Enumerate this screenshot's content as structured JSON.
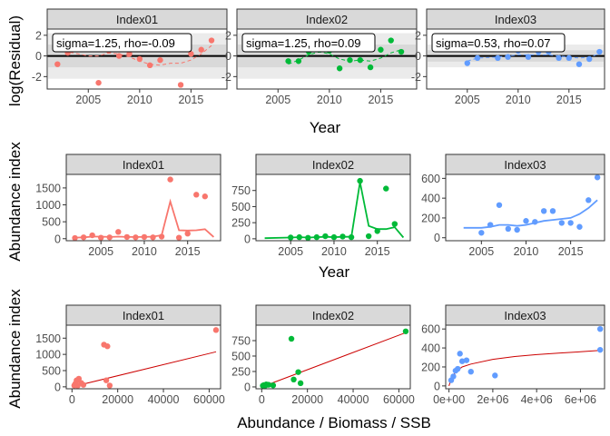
{
  "colors": {
    "index01": "#F8766D",
    "index02": "#00BA38",
    "index03": "#619CFF",
    "fit_line": "#CC0000",
    "strip": "#D9D9D9",
    "band_outer": "#EBEBEB",
    "band_inner": "#D9D9D9"
  },
  "chart_data": [
    {
      "id": "residuals",
      "type": "scatter",
      "ylabel": "log(Residual)",
      "xlabel": "Year",
      "xlim": [
        2001,
        2018.5
      ],
      "ylim": [
        -3.2,
        2.6
      ],
      "xticks": [
        "2005",
        "2010",
        "2015"
      ],
      "yticks": [
        "2",
        "0",
        "-2"
      ],
      "ytick_values": [
        2,
        0,
        -2
      ],
      "zero_line": true,
      "panels": [
        {
          "strip": "Index01",
          "annotation": "sigma=1.25, rho=-0.09",
          "band_outer": 2.2,
          "band_inner": 1.1,
          "x": [
            2002,
            2003,
            2004,
            2005,
            2006,
            2007,
            2008,
            2009,
            2010,
            2011,
            2012,
            2013,
            2014,
            2015,
            2016,
            2017
          ],
          "y": [
            -0.8,
            0.3,
            0.7,
            1.4,
            -2.6,
            0.5,
            0.0,
            0.2,
            -0.3,
            -0.9,
            -0.4,
            1.0,
            -2.8,
            0.2,
            0.6,
            1.5
          ],
          "smooth_y": [
            0.6,
            0.4,
            0.2,
            0.0,
            0.0,
            0.3,
            0.2,
            -0.1,
            -0.5,
            -0.8,
            -0.9,
            -0.7,
            -0.7,
            -0.4,
            0.2,
            1.0
          ]
        },
        {
          "strip": "Index02",
          "annotation": "sigma=1.25, rho=0.09",
          "band_outer": 2.2,
          "band_inner": 1.1,
          "x": [
            2006,
            2007,
            2008,
            2009,
            2010,
            2011,
            2012,
            2013,
            2014,
            2015,
            2016,
            2017
          ],
          "y": [
            -0.5,
            -0.5,
            0.4,
            0.6,
            0.5,
            -1.2,
            -0.4,
            -0.4,
            -1.1,
            0.6,
            1.5,
            0.4
          ],
          "smooth_y": [
            -0.8,
            -0.4,
            0.1,
            0.4,
            0.2,
            -0.3,
            -0.5,
            -0.4,
            -0.5,
            -0.2,
            0.3,
            0.6
          ]
        },
        {
          "strip": "Index03",
          "annotation": "sigma=0.53, rho=0.07",
          "band_outer": 1.1,
          "band_inner": 0.55,
          "x": [
            2005,
            2006,
            2008,
            2009,
            2010,
            2011,
            2012,
            2013,
            2014,
            2015,
            2016,
            2017,
            2018
          ],
          "y": [
            -0.7,
            -0.2,
            -0.2,
            -0.1,
            0.5,
            -0.1,
            0.4,
            0.4,
            -0.2,
            -0.2,
            -0.8,
            -0.3,
            0.4
          ],
          "smooth_y": [
            -0.5,
            -0.2,
            -0.1,
            0.0,
            0.1,
            0.1,
            0.1,
            0.1,
            0.0,
            -0.1,
            -0.2,
            -0.1,
            0.2
          ]
        }
      ]
    },
    {
      "id": "index_vs_year",
      "type": "line",
      "ylabel": "Abundance index",
      "xlabel": "Year",
      "xlim": [
        2001,
        2018.8
      ],
      "xticks": [
        "2005",
        "2010",
        "2015"
      ],
      "panels": [
        {
          "strip": "Index01",
          "ylim": [
            -60,
            1900
          ],
          "yticks": [
            "1500",
            "1000",
            "500",
            "0"
          ],
          "ytick_values": [
            1500,
            1000,
            500,
            0
          ],
          "x": [
            2002,
            2003,
            2004,
            2005,
            2006,
            2007,
            2008,
            2009,
            2010,
            2011,
            2012,
            2013,
            2014,
            2015,
            2016,
            2017
          ],
          "obs": [
            20,
            40,
            100,
            30,
            40,
            200,
            50,
            40,
            50,
            40,
            60,
            1750,
            30,
            150,
            1300,
            1250
          ],
          "pred_x": [
            2002,
            2003,
            2004,
            2005,
            2006,
            2007,
            2008,
            2009,
            2010,
            2011,
            2012,
            2013,
            2014,
            2015,
            2016,
            2017,
            2018
          ],
          "pred": [
            30,
            40,
            60,
            60,
            50,
            60,
            50,
            50,
            50,
            60,
            100,
            1100,
            250,
            240,
            250,
            280,
            50
          ]
        },
        {
          "strip": "Index02",
          "ylim": [
            -30,
            1000
          ],
          "yticks": [
            "750",
            "500",
            "250",
            "0"
          ],
          "ytick_values": [
            750,
            500,
            250,
            0
          ],
          "x": [
            2005,
            2006,
            2007,
            2008,
            2009,
            2010,
            2011,
            2012,
            2013,
            2014,
            2015,
            2016,
            2017
          ],
          "obs": [
            20,
            25,
            15,
            25,
            40,
            25,
            35,
            25,
            900,
            40,
            120,
            780,
            230
          ],
          "pred_x": [
            2002,
            2005,
            2006,
            2007,
            2008,
            2009,
            2010,
            2011,
            2012,
            2013,
            2014,
            2015,
            2016,
            2017,
            2018
          ],
          "pred": [
            10,
            20,
            25,
            20,
            25,
            30,
            25,
            30,
            30,
            880,
            200,
            150,
            150,
            180,
            20
          ]
        },
        {
          "strip": "Index03",
          "ylim": [
            -30,
            640
          ],
          "yticks": [
            "600",
            "400",
            "200",
            "0"
          ],
          "ytick_values": [
            600,
            400,
            200,
            0
          ],
          "x": [
            2005,
            2006,
            2007,
            2008,
            2009,
            2010,
            2011,
            2012,
            2013,
            2014,
            2015,
            2016,
            2017,
            2018
          ],
          "obs": [
            50,
            130,
            330,
            90,
            80,
            170,
            160,
            270,
            270,
            150,
            150,
            110,
            380,
            610
          ],
          "pred_x": [
            2003,
            2005,
            2006,
            2007,
            2008,
            2009,
            2010,
            2011,
            2012,
            2013,
            2014,
            2015,
            2016,
            2017,
            2018
          ],
          "pred": [
            100,
            100,
            110,
            130,
            130,
            120,
            130,
            150,
            170,
            180,
            190,
            200,
            240,
            300,
            380
          ]
        }
      ]
    },
    {
      "id": "index_vs_abundance",
      "type": "scatter",
      "ylabel": "Abundance index",
      "xlabel": "Abundance / Biomass / SSB",
      "panels": [
        {
          "strip": "Index01",
          "xlim": [
            -2500,
            65000
          ],
          "ylim": [
            -60,
            1900
          ],
          "xticks": [
            "0",
            "20000",
            "40000",
            "60000"
          ],
          "xtick_values": [
            0,
            20000,
            40000,
            60000
          ],
          "yticks": [
            "1500",
            "1000",
            "500",
            "0"
          ],
          "ytick_values": [
            1500,
            1000,
            500,
            0
          ],
          "x": [
            1000,
            1500,
            2000,
            2500,
            3000,
            4000,
            5000,
            14000,
            15000,
            15500,
            16500,
            63000
          ],
          "y": [
            40,
            100,
            200,
            30,
            250,
            120,
            60,
            1300,
            200,
            1250,
            40,
            1750
          ],
          "fit_x": [
            0,
            63000
          ],
          "fit_y": [
            0,
            1080
          ]
        },
        {
          "strip": "Index02",
          "xlim": [
            -2500,
            65000
          ],
          "ylim": [
            -30,
            1000
          ],
          "xticks": [
            "0",
            "20000",
            "40000",
            "60000"
          ],
          "xtick_values": [
            0,
            20000,
            40000,
            60000
          ],
          "yticks": [
            "750",
            "500",
            "250",
            "0"
          ],
          "ytick_values": [
            750,
            500,
            250,
            0
          ],
          "x": [
            500,
            1000,
            1500,
            2000,
            3000,
            5000,
            13000,
            14000,
            16000,
            17000,
            63000
          ],
          "y": [
            20,
            30,
            20,
            40,
            35,
            25,
            780,
            120,
            240,
            60,
            900
          ],
          "fit_x": [
            0,
            63000
          ],
          "fit_y": [
            0,
            880
          ]
        },
        {
          "strip": "Index03",
          "xlim": [
            -150000,
            7100000
          ],
          "ylim": [
            -30,
            640
          ],
          "xticks": [
            "0e+00",
            "2e+06",
            "4e+06",
            "6e+06"
          ],
          "xtick_values": [
            0,
            2000000,
            4000000,
            6000000
          ],
          "yticks": [
            "600",
            "400",
            "200",
            "0"
          ],
          "ytick_values": [
            600,
            400,
            200,
            0
          ],
          "x": [
            100000,
            200000,
            300000,
            400000,
            500000,
            600000,
            800000,
            1000000,
            2100000,
            6900000,
            6900000
          ],
          "y": [
            60,
            100,
            160,
            180,
            340,
            260,
            270,
            150,
            110,
            380,
            600
          ],
          "fit_x": [
            0,
            100000,
            300000,
            600000,
            1000000,
            2000000,
            3000000,
            4000000,
            5000000,
            6000000,
            6900000
          ],
          "fit_y": [
            0,
            70,
            150,
            200,
            230,
            280,
            310,
            330,
            345,
            360,
            375
          ]
        }
      ]
    }
  ]
}
